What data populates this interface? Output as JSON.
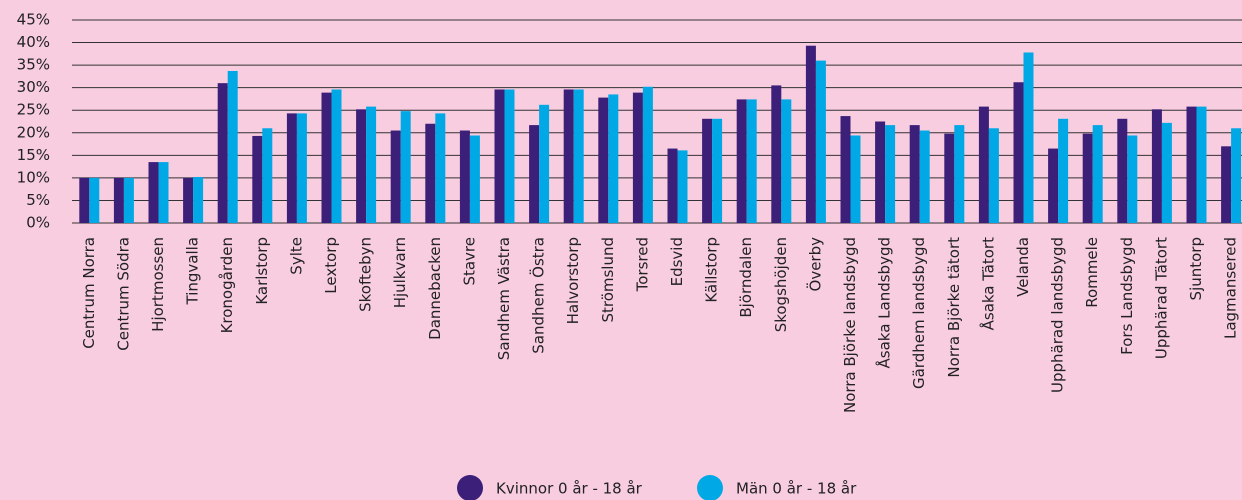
{
  "chart_data": {
    "type": "bar",
    "categories": [
      "Centrum Norra",
      "Centrum Södra",
      "Hjortmossen",
      "Tingvalla",
      "Kronogården",
      "Karlstorp",
      "Sylte",
      "Lextorp",
      "Skoftebyn",
      "Hjulkvarn",
      "Dannebacken",
      "Stavre",
      "Sandhem Västra",
      "Sandhem Östra",
      "Halvorstorp",
      "Strömslund",
      "Torsred",
      "Edsvid",
      "Källstorp",
      "Björndalen",
      "Skogshöjden",
      "Överby",
      "Norra Björke landsbygd",
      "Åsaka Landsbygd",
      "Gärdhem landsbygd",
      "Norra Björke tätort",
      "Åsaka Tätort",
      "Velanda",
      "Upphärad landsbygd",
      "Rommele",
      "Fors Landsbygd",
      "Upphärad Tätort",
      "Sjuntorp",
      "Lagmansered"
    ],
    "series": [
      {
        "name": "Kvinnor 0 år - 18 år",
        "color": "#3b1f78",
        "values": [
          10,
          10,
          13.5,
          10,
          31,
          19.3,
          24.3,
          28.9,
          25.2,
          20.5,
          22,
          20.5,
          29.6,
          21.7,
          29.6,
          27.8,
          28.9,
          16.5,
          23.1,
          27.4,
          30.5,
          39.3,
          23.7,
          22.5,
          21.7,
          19.8,
          25.8,
          31.2,
          16.5,
          19.8,
          23.1,
          25.2,
          25.8,
          17
        ]
      },
      {
        "name": "Män 0 år - 18 år",
        "color": "#00a9e6",
        "values": [
          10,
          10,
          13.5,
          10.2,
          33.7,
          21,
          24.3,
          29.6,
          25.8,
          24.8,
          24.3,
          19.4,
          29.6,
          26.2,
          29.6,
          28.5,
          30.2,
          16.1,
          23.1,
          27.4,
          27.4,
          36,
          19.4,
          21.7,
          20.5,
          21.7,
          21,
          37.8,
          23.1,
          21.7,
          19.4,
          22.2,
          25.8,
          21
        ]
      }
    ],
    "ylim": [
      0,
      45
    ],
    "yticks": [
      {
        "value": 0,
        "label": "0%"
      },
      {
        "value": 5,
        "label": "5%"
      },
      {
        "value": 10,
        "label": "10%"
      },
      {
        "value": 15,
        "label": "15%"
      },
      {
        "value": 20,
        "label": "20%"
      },
      {
        "value": 25,
        "label": "25%"
      },
      {
        "value": 30,
        "label": "30%"
      },
      {
        "value": 35,
        "label": "35%"
      },
      {
        "value": 40,
        "label": "40%"
      },
      {
        "value": 45,
        "label": "45%"
      }
    ],
    "grid": true
  }
}
